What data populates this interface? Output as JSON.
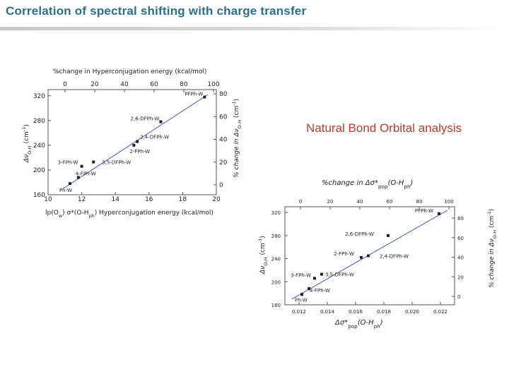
{
  "header": {
    "title": "Correlation of spectral shifting with charge transfer"
  },
  "callout": {
    "text": "Natural Bond Orbital analysis"
  },
  "colors": {
    "title": "#2a6f8f",
    "callout": "#c0392b",
    "fit_line": "#3b5bd6",
    "points": "#222222"
  },
  "chart_data": [
    {
      "type": "scatter",
      "panel": "left",
      "top_axis_label": "%change in  Hyperconjugation energy (kcal/mol)",
      "bottom_axis_label": "lp(Ow) σ*(O-Hph) Hyperconjugation energy (kcal/mol)",
      "bottom_axis_label_parts": {
        "lp": "lp(O",
        "lp_sub": "w",
        "mid": ") ",
        "sigma": "σ*(O-H",
        "sigma_sub": "ph",
        "rest": ") Hyperconjugation energy (kcal/mol)"
      },
      "left_axis_label_parts": {
        "delta": "Δν",
        "sub": "O-H",
        "rest": " (cm",
        "sup": "-1",
        "end": ")"
      },
      "right_axis_label_parts": {
        "pre": "% change in Δν",
        "sub": "O-H",
        "rest": " (cm",
        "sup": "-1",
        "end": ")"
      },
      "xlim": [
        10,
        20
      ],
      "ylim": [
        160,
        330
      ],
      "x_ticks": [
        "10",
        "12",
        "14",
        "16",
        "18",
        "20"
      ],
      "y_ticks": [
        "160",
        "200",
        "240",
        "280",
        "320"
      ],
      "top_ticks": [
        "0",
        "20",
        "40",
        "60",
        "80",
        "100"
      ],
      "right_ticks": [
        "0",
        "20",
        "40",
        "60",
        "80"
      ],
      "points": [
        {
          "label": "Ph-W",
          "x": 11.3,
          "y": 178
        },
        {
          "label": "4-FPh-W",
          "x": 11.8,
          "y": 188
        },
        {
          "label": "3-FPh-W",
          "x": 12.0,
          "y": 206
        },
        {
          "label": "3,5-DFPh-W",
          "x": 12.7,
          "y": 213
        },
        {
          "label": "2-FPh-W",
          "x": 15.1,
          "y": 240
        },
        {
          "label": "2,4-DFPh-W",
          "x": 15.3,
          "y": 246
        },
        {
          "label": "2,6-DFPh-W",
          "x": 16.7,
          "y": 278
        },
        {
          "label": "PFPh-W",
          "x": 19.3,
          "y": 318
        }
      ],
      "fit_line": {
        "x": [
          10.9,
          19.5
        ],
        "y": [
          170,
          322
        ]
      }
    },
    {
      "type": "scatter",
      "panel": "right",
      "top_axis_label_parts": {
        "pre": "%change in ",
        "delta": "Δσ*",
        "sub": "pop",
        "rest": "(O-H",
        "sub2": "ph",
        "end": ")"
      },
      "bottom_axis_label_parts": {
        "delta": "Δσ*",
        "sub": "pop",
        "rest": "(O-H",
        "sub2": "ph",
        "end": ")"
      },
      "left_axis_label_parts": {
        "delta": "Δν",
        "sub": "O-H",
        "rest": " (cm",
        "sup": "-1",
        "end": ")"
      },
      "right_axis_label_parts": {
        "pre": "% change in Δν",
        "sub": "O-H",
        "rest": " (cm",
        "sup": "-1",
        "end": ")"
      },
      "xlim": [
        0.011,
        0.023
      ],
      "ylim": [
        160,
        330
      ],
      "x_ticks": [
        "0.012",
        "0.014",
        "0.016",
        "0.018",
        "0.020",
        "0.022"
      ],
      "y_ticks": [
        "160",
        "200",
        "240",
        "280",
        "320"
      ],
      "top_ticks": [
        "0",
        "20",
        "40",
        "60",
        "80",
        "100"
      ],
      "right_ticks": [
        "0",
        "20",
        "40",
        "60",
        "80"
      ],
      "points": [
        {
          "label": "Ph-W",
          "x": 0.0122,
          "y": 178
        },
        {
          "label": "4-FPh-W",
          "x": 0.0127,
          "y": 188
        },
        {
          "label": "3-FPh-W",
          "x": 0.0131,
          "y": 206
        },
        {
          "label": "3,5-DFPh-W",
          "x": 0.0136,
          "y": 213
        },
        {
          "label": "2-FPh-W",
          "x": 0.0164,
          "y": 242
        },
        {
          "label": "2,4-DFPh-W",
          "x": 0.0169,
          "y": 245
        },
        {
          "label": "2,6-DFPh-W",
          "x": 0.0183,
          "y": 280
        },
        {
          "label": "PFPh-W",
          "x": 0.0219,
          "y": 318
        }
      ],
      "fit_line": {
        "x": [
          0.0115,
          0.0225
        ],
        "y": [
          170,
          324
        ]
      }
    }
  ]
}
